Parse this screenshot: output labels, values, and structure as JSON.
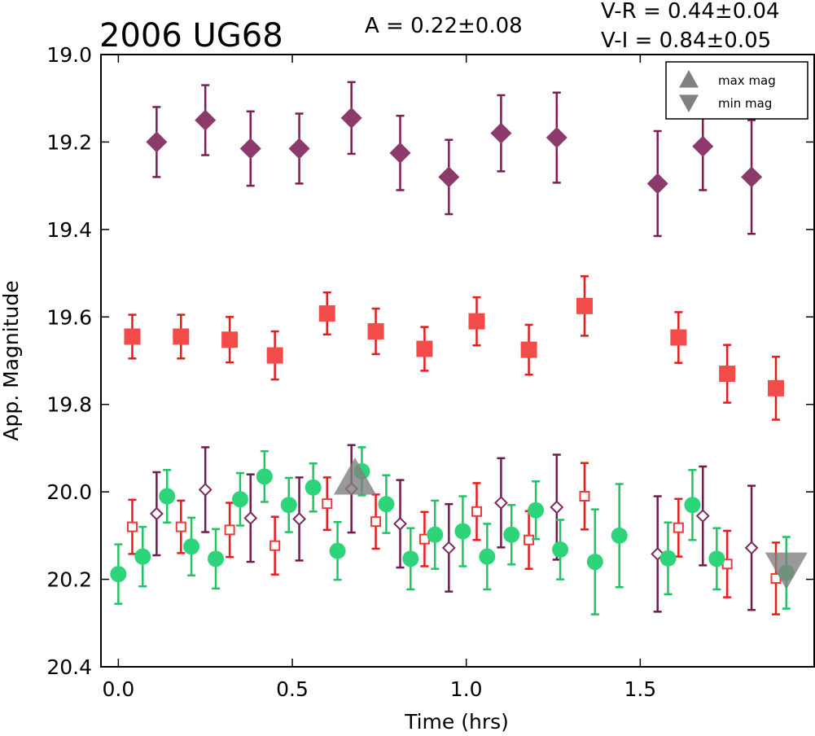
{
  "chart_data": {
    "type": "scatter",
    "title": "2006 UG68",
    "amplitude_text": "A  = 0.22±0.08",
    "color_indices": [
      "V-R = 0.44±0.04",
      "V-I  = 0.84±0.05"
    ],
    "xlabel": "Time (hrs)",
    "ylabel": "App. Magnitude",
    "xlim": [
      -0.05,
      2.0
    ],
    "ylim": [
      20.4,
      19.0
    ],
    "y_inverted": true,
    "xticks": [
      "0.0",
      "0.5",
      "1.0",
      "1.5"
    ],
    "xtick_values": [
      0.0,
      0.5,
      1.0,
      1.5
    ],
    "yticks": [
      "19.0",
      "19.2",
      "19.4",
      "19.6",
      "19.8",
      "20.0",
      "20.2",
      "20.4"
    ],
    "ytick_values": [
      19.0,
      19.2,
      19.4,
      19.6,
      19.8,
      20.0,
      20.2,
      20.4
    ],
    "grid": false,
    "legend_position": "top-right",
    "legend": [
      {
        "label": "max mag",
        "marker": "triangle-up",
        "color": "#808080"
      },
      {
        "label": "min mag",
        "marker": "triangle-down",
        "color": "#808080"
      }
    ],
    "series": [
      {
        "marker": "diamond-filled",
        "color": "#8b3a6b",
        "error_color": "#7a1f52",
        "points": [
          {
            "x": 0.11,
            "y": 19.2,
            "err": 0.08
          },
          {
            "x": 0.25,
            "y": 19.15,
            "err": 0.08
          },
          {
            "x": 0.38,
            "y": 19.215,
            "err": 0.085
          },
          {
            "x": 0.52,
            "y": 19.215,
            "err": 0.08
          },
          {
            "x": 0.67,
            "y": 19.145,
            "err": 0.082
          },
          {
            "x": 0.81,
            "y": 19.225,
            "err": 0.085
          },
          {
            "x": 0.95,
            "y": 19.28,
            "err": 0.085
          },
          {
            "x": 1.1,
            "y": 19.18,
            "err": 0.087
          },
          {
            "x": 1.26,
            "y": 19.19,
            "err": 0.103
          },
          {
            "x": 1.55,
            "y": 19.295,
            "err": 0.12
          },
          {
            "x": 1.68,
            "y": 19.21,
            "err": 0.1
          },
          {
            "x": 1.82,
            "y": 19.28,
            "err": 0.13
          }
        ]
      },
      {
        "marker": "square-filled",
        "color": "#f34a4a",
        "error_color": "#e01e1e",
        "points": [
          {
            "x": 0.04,
            "y": 19.645,
            "err": 0.05
          },
          {
            "x": 0.18,
            "y": 19.645,
            "err": 0.05
          },
          {
            "x": 0.32,
            "y": 19.652,
            "err": 0.052
          },
          {
            "x": 0.45,
            "y": 19.688,
            "err": 0.055
          },
          {
            "x": 0.6,
            "y": 19.592,
            "err": 0.048
          },
          {
            "x": 0.74,
            "y": 19.633,
            "err": 0.052
          },
          {
            "x": 0.88,
            "y": 19.673,
            "err": 0.05
          },
          {
            "x": 1.03,
            "y": 19.61,
            "err": 0.055
          },
          {
            "x": 1.18,
            "y": 19.675,
            "err": 0.057
          },
          {
            "x": 1.34,
            "y": 19.575,
            "err": 0.068
          },
          {
            "x": 1.61,
            "y": 19.647,
            "err": 0.058
          },
          {
            "x": 1.75,
            "y": 19.73,
            "err": 0.066
          },
          {
            "x": 1.89,
            "y": 19.763,
            "err": 0.072
          }
        ]
      },
      {
        "marker": "diamond-open",
        "color": "#7a2a5e",
        "error_color": "#6e1d4f",
        "points": [
          {
            "x": 0.11,
            "y": 20.05,
            "err": 0.095
          },
          {
            "x": 0.25,
            "y": 19.995,
            "err": 0.097
          },
          {
            "x": 0.38,
            "y": 20.06,
            "err": 0.1
          },
          {
            "x": 0.52,
            "y": 20.062,
            "err": 0.095
          },
          {
            "x": 0.67,
            "y": 19.993,
            "err": 0.1
          },
          {
            "x": 0.81,
            "y": 20.073,
            "err": 0.1
          },
          {
            "x": 0.95,
            "y": 20.128,
            "err": 0.1
          },
          {
            "x": 1.1,
            "y": 20.025,
            "err": 0.102
          },
          {
            "x": 1.26,
            "y": 20.035,
            "err": 0.12
          },
          {
            "x": 1.55,
            "y": 20.142,
            "err": 0.132
          },
          {
            "x": 1.68,
            "y": 20.055,
            "err": 0.113
          },
          {
            "x": 1.82,
            "y": 20.128,
            "err": 0.142
          }
        ]
      },
      {
        "marker": "square-open",
        "color": "#ee3a3a",
        "error_color": "#e81c1c",
        "points": [
          {
            "x": 0.04,
            "y": 20.08,
            "err": 0.062
          },
          {
            "x": 0.18,
            "y": 20.08,
            "err": 0.06
          },
          {
            "x": 0.32,
            "y": 20.087,
            "err": 0.062
          },
          {
            "x": 0.45,
            "y": 20.123,
            "err": 0.066
          },
          {
            "x": 0.6,
            "y": 20.027,
            "err": 0.06
          },
          {
            "x": 0.74,
            "y": 20.068,
            "err": 0.062
          },
          {
            "x": 0.88,
            "y": 20.108,
            "err": 0.062
          },
          {
            "x": 1.03,
            "y": 20.045,
            "err": 0.065
          },
          {
            "x": 1.18,
            "y": 20.11,
            "err": 0.066
          },
          {
            "x": 1.34,
            "y": 20.01,
            "err": 0.076
          },
          {
            "x": 1.61,
            "y": 20.082,
            "err": 0.066
          },
          {
            "x": 1.75,
            "y": 20.165,
            "err": 0.076
          },
          {
            "x": 1.89,
            "y": 20.198,
            "err": 0.082
          }
        ]
      },
      {
        "marker": "circle",
        "color": "#2ed47a",
        "error_color": "#20c464",
        "points": [
          {
            "x": 0.0,
            "y": 20.188,
            "err": 0.068
          },
          {
            "x": 0.07,
            "y": 20.148,
            "err": 0.068
          },
          {
            "x": 0.14,
            "y": 20.01,
            "err": 0.06
          },
          {
            "x": 0.21,
            "y": 20.125,
            "err": 0.066
          },
          {
            "x": 0.28,
            "y": 20.153,
            "err": 0.068
          },
          {
            "x": 0.35,
            "y": 20.017,
            "err": 0.06
          },
          {
            "x": 0.42,
            "y": 19.965,
            "err": 0.058
          },
          {
            "x": 0.49,
            "y": 20.03,
            "err": 0.062
          },
          {
            "x": 0.56,
            "y": 19.99,
            "err": 0.055
          },
          {
            "x": 0.63,
            "y": 20.135,
            "err": 0.066
          },
          {
            "x": 0.7,
            "y": 19.953,
            "err": 0.055
          },
          {
            "x": 0.77,
            "y": 20.028,
            "err": 0.066
          },
          {
            "x": 0.84,
            "y": 20.153,
            "err": 0.07
          },
          {
            "x": 0.91,
            "y": 20.098,
            "err": 0.078
          },
          {
            "x": 0.99,
            "y": 20.09,
            "err": 0.08
          },
          {
            "x": 1.06,
            "y": 20.148,
            "err": 0.075
          },
          {
            "x": 1.13,
            "y": 20.098,
            "err": 0.068
          },
          {
            "x": 1.2,
            "y": 20.042,
            "err": 0.066
          },
          {
            "x": 1.27,
            "y": 20.132,
            "err": 0.068
          },
          {
            "x": 1.37,
            "y": 20.16,
            "err": 0.12
          },
          {
            "x": 1.44,
            "y": 20.1,
            "err": 0.118
          },
          {
            "x": 1.58,
            "y": 20.152,
            "err": 0.082
          },
          {
            "x": 1.65,
            "y": 20.03,
            "err": 0.08
          },
          {
            "x": 1.72,
            "y": 20.153,
            "err": 0.07
          },
          {
            "x": 1.92,
            "y": 20.185,
            "err": 0.082
          }
        ]
      }
    ],
    "extrema": [
      {
        "type": "max mag",
        "x": 0.68,
        "y": 19.97,
        "color": "#808080"
      },
      {
        "type": "min mag",
        "x": 1.92,
        "y": 20.175,
        "color": "#808080"
      }
    ]
  }
}
